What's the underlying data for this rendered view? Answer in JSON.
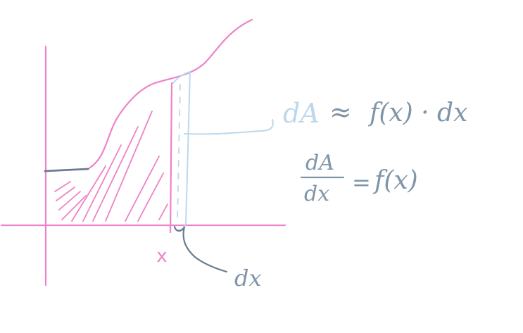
{
  "colors": {
    "background": "#ffffff",
    "pink": "#ee82c8",
    "pink_light": "#f4a7d8",
    "dark_gray": "#6b7b8f",
    "steel": "#7f95a8",
    "light_blue": "#bcd8ec"
  },
  "labels": {
    "x_tick": "x",
    "dx_pointer": "dx",
    "equation_1": {
      "lhs": "dA",
      "approx": "≈",
      "rhs": "f(x) · dx"
    },
    "equation_2": {
      "numerator": "dA",
      "denominator": "dx",
      "equals": "=",
      "rhs": "f(x)"
    }
  }
}
